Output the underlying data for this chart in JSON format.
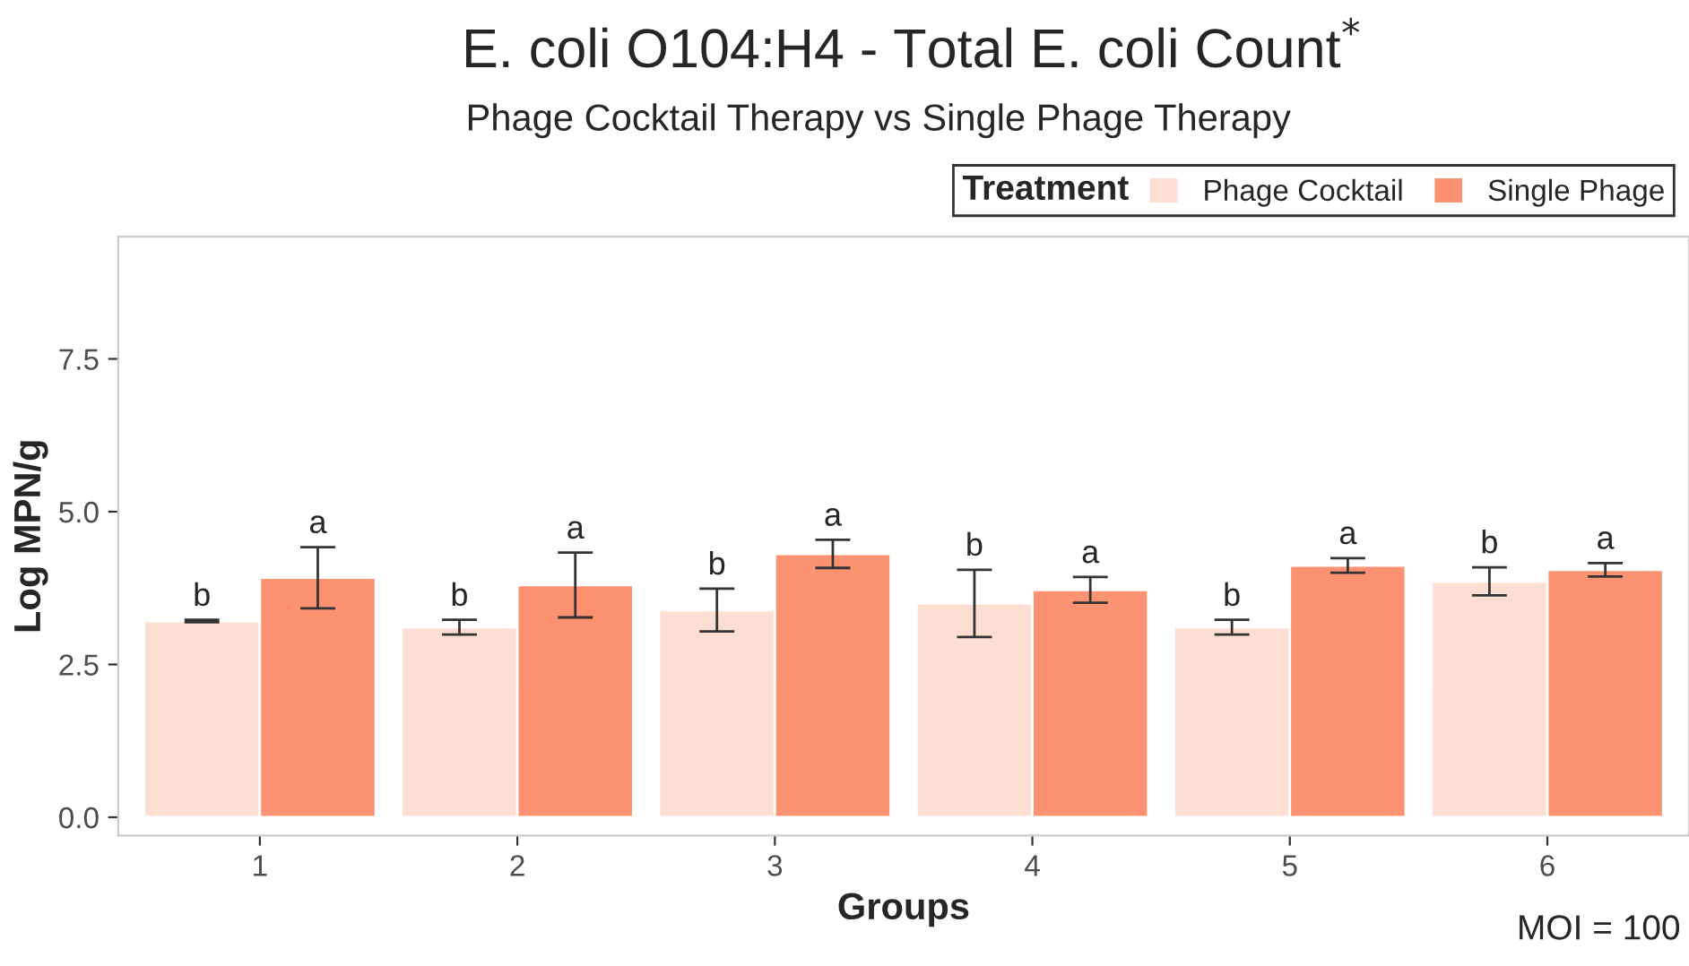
{
  "chart_data": {
    "type": "bar",
    "title": "E. coli O104:H4 - Total E. coli Count$^{*}$",
    "subtitle": "Phage Cocktail Therapy vs Single Phage Therapy",
    "xlabel": "Groups",
    "ylabel": "Log MPN/g",
    "legend_title": "Treatment",
    "annotations": [
      "MOI = 100"
    ],
    "categories": [
      "1",
      "2",
      "3",
      "4",
      "5",
      "6"
    ],
    "series": [
      {
        "name": "Phage Cocktail",
        "color": "#fcdfd2",
        "values": [
          3.21,
          3.11,
          3.39,
          3.5,
          3.11,
          3.86
        ],
        "errors": [
          0.02,
          0.12,
          0.35,
          0.55,
          0.12,
          0.23
        ],
        "value_labels": [
          "b",
          "b",
          "b",
          "b",
          "b",
          "b"
        ]
      },
      {
        "name": "Single Phage",
        "color": "#fc9272",
        "values": [
          3.92,
          3.8,
          4.31,
          3.72,
          4.12,
          4.05
        ],
        "errors": [
          0.5,
          0.53,
          0.23,
          0.21,
          0.12,
          0.11
        ],
        "value_labels": [
          "a",
          "a",
          "a",
          "a",
          "a",
          "a"
        ]
      }
    ],
    "ylim": [
      -0.3,
      9.5
    ],
    "yticks": [
      {
        "value": 0,
        "label": "0.0"
      },
      {
        "value": 2.5,
        "label": "2.5"
      },
      {
        "value": 5,
        "label": "5.0"
      },
      {
        "value": 7.5,
        "label": "7.5"
      }
    ],
    "grid": false,
    "legend": "top right"
  }
}
